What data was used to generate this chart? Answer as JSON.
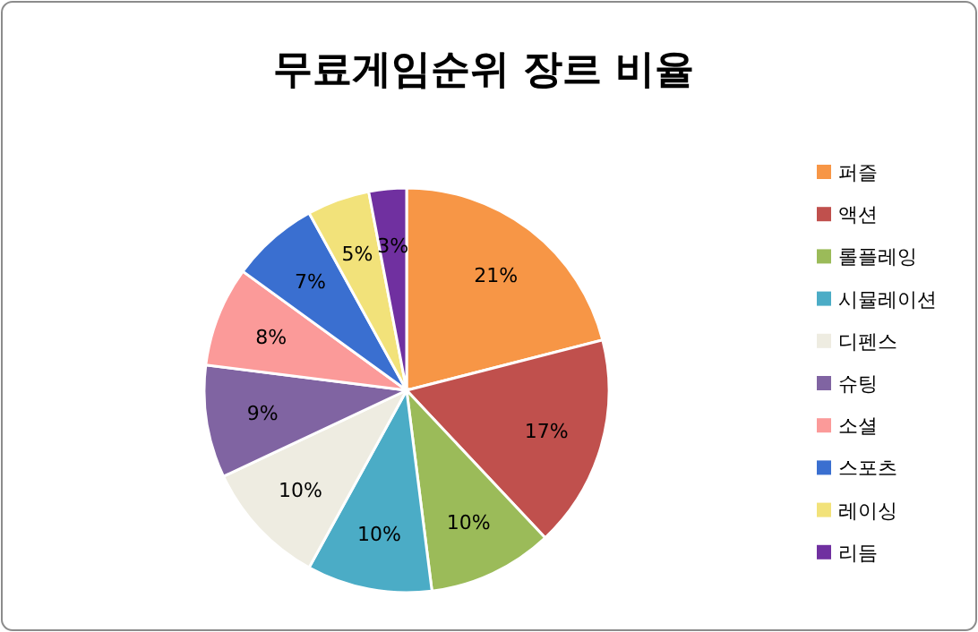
{
  "chart_data": {
    "type": "pie",
    "title": "무료게임순위 장르 비율",
    "categories": [
      "퍼즐",
      "액션",
      "롤플레잉",
      "시뮬레이션",
      "디펜스",
      "슈팅",
      "소셜",
      "스포츠",
      "레이싱",
      "리듬"
    ],
    "values": [
      21,
      17,
      10,
      10,
      10,
      9,
      8,
      7,
      5,
      3
    ],
    "colors": [
      "#f79646",
      "#c0504d",
      "#9bbb59",
      "#4bacc6",
      "#eeece1",
      "#8064a2",
      "#fb9a99",
      "#3a6fd0",
      "#f2e27a",
      "#7030a0"
    ],
    "value_labels": [
      "21%",
      "17%",
      "10%",
      "10%",
      "10%",
      "9%",
      "8%",
      "7%",
      "5%",
      "3%"
    ],
    "legend": "right"
  }
}
